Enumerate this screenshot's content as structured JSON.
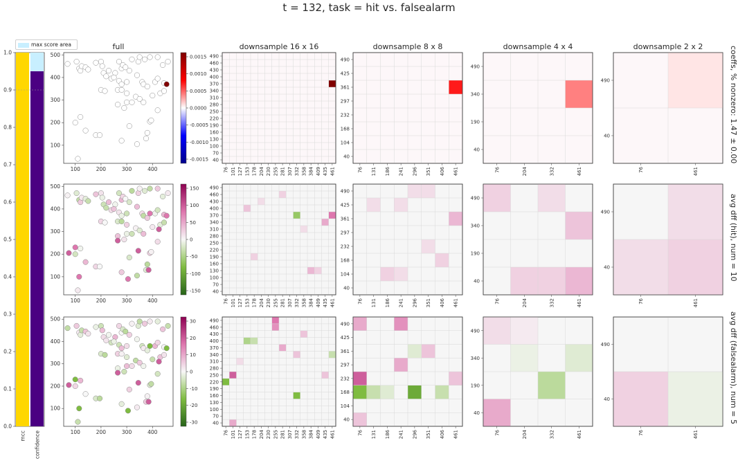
{
  "suptitle": "t = 132, task = hit vs. falsealarm",
  "legend": {
    "label": "max score area",
    "color": "#c8efff"
  },
  "column_titles": [
    "full",
    "downsample 16 x 16",
    "downsample 8 x 8",
    "downsample 4 x 4",
    "downsample 2 x 2"
  ],
  "row_labels": [
    "coeffs, % nonzero: 1.47 ± 0.00",
    "avg dff (hit),  num = 10",
    "avg dff (falsealarm),  num = 5"
  ],
  "chart_data": {
    "type": "bar",
    "categories": [
      "mcc",
      "confidence"
    ],
    "values": [
      1.0,
      0.95
    ],
    "bar_colors": [
      "#ffd700",
      "#4b0082"
    ],
    "max_score_area": [
      1.0,
      1.0
    ],
    "ylim": [
      0,
      1.0
    ],
    "yticks": [
      "0.0",
      "0.1",
      "0.2",
      "0.3",
      "0.4",
      "0.5",
      "0.6",
      "0.7",
      "0.8",
      "0.9",
      "1.0"
    ],
    "reference_line": 0.9,
    "scatter": {
      "type": "scatter",
      "xlim": [
        55,
        480
      ],
      "ylim": [
        20,
        510
      ],
      "xticks": [
        "100",
        "200",
        "300",
        "400"
      ],
      "yticks": [
        "100",
        "200",
        "300",
        "400",
        "500"
      ],
      "points": [
        [
          70,
          460
        ],
        [
          105,
          470
        ],
        [
          115,
          440
        ],
        [
          120,
          430
        ],
        [
          125,
          450
        ],
        [
          140,
          445
        ],
        [
          150,
          435
        ],
        [
          180,
          465
        ],
        [
          200,
          470
        ],
        [
          205,
          450
        ],
        [
          210,
          420
        ],
        [
          230,
          430
        ],
        [
          240,
          395
        ],
        [
          255,
          420
        ],
        [
          270,
          470
        ],
        [
          280,
          440
        ],
        [
          285,
          455
        ],
        [
          295,
          445
        ],
        [
          310,
          430
        ],
        [
          320,
          480
        ],
        [
          345,
          470
        ],
        [
          350,
          490
        ],
        [
          370,
          480
        ],
        [
          390,
          490
        ],
        [
          420,
          490
        ],
        [
          460,
          470
        ],
        [
          440,
          455
        ],
        [
          220,
          405
        ],
        [
          250,
          400
        ],
        [
          270,
          385
        ],
        [
          280,
          370
        ],
        [
          300,
          380
        ],
        [
          340,
          410
        ],
        [
          360,
          380
        ],
        [
          410,
          380
        ],
        [
          420,
          395
        ],
        [
          445,
          375
        ],
        [
          200,
          345
        ],
        [
          215,
          340
        ],
        [
          265,
          345
        ],
        [
          280,
          345
        ],
        [
          300,
          330
        ],
        [
          335,
          315
        ],
        [
          350,
          305
        ],
        [
          365,
          370
        ],
        [
          380,
          360
        ],
        [
          400,
          320
        ],
        [
          430,
          330
        ],
        [
          445,
          340
        ],
        [
          265,
          280
        ],
        [
          290,
          265
        ],
        [
          300,
          290
        ],
        [
          320,
          290
        ],
        [
          365,
          290
        ],
        [
          420,
          255
        ],
        [
          120,
          225
        ],
        [
          100,
          200
        ],
        [
          140,
          165
        ],
        [
          180,
          145
        ],
        [
          195,
          145
        ],
        [
          310,
          185
        ],
        [
          380,
          155
        ],
        [
          390,
          205
        ],
        [
          395,
          210
        ],
        [
          375,
          130
        ],
        [
          340,
          105
        ],
        [
          280,
          120
        ],
        [
          110,
          40
        ]
      ],
      "highlight_points": [
        [
          455,
          370
        ],
        [
          385,
          130
        ],
        [
          115,
          100
        ],
        [
          75,
          205
        ],
        [
          100,
          230
        ],
        [
          265,
          260
        ],
        [
          305,
          90
        ],
        [
          345,
          215
        ],
        [
          390,
          380
        ],
        [
          425,
          310
        ]
      ]
    },
    "colorbars": [
      {
        "ticks": [
          "0.0015",
          "0.0010",
          "0.0005",
          "0.0000",
          "-0.0005",
          "-0.0010",
          "-0.0015"
        ],
        "colors": [
          "#800000",
          "#ff0000",
          "#ffffff",
          "#0000ff",
          "#00008b"
        ]
      },
      {
        "ticks": [
          "150",
          "100",
          "50",
          "0",
          "-50",
          "-100",
          "-150"
        ],
        "colors": [
          "#8e0152",
          "#de77ae",
          "#f7f7f7",
          "#7fbc41",
          "#276419"
        ]
      },
      {
        "ticks": [
          "30",
          "20",
          "10",
          "0",
          "-10",
          "-20",
          "-30"
        ],
        "colors": [
          "#8e0152",
          "#de77ae",
          "#f7f7f7",
          "#7fbc41",
          "#276419"
        ]
      }
    ],
    "grids": {
      "g16": {
        "xticks": [
          "76",
          "101",
          "127",
          "153",
          "178",
          "204",
          "230",
          "255",
          "281",
          "307",
          "332",
          "358",
          "384",
          "409",
          "435",
          "461"
        ],
        "yticks": [
          "490",
          "460",
          "430",
          "400",
          "370",
          "340",
          "310",
          "280",
          "250",
          "220",
          "190",
          "160",
          "130",
          "100",
          "70",
          "40"
        ]
      },
      "g8": {
        "xticks": [
          "76",
          "131",
          "186",
          "241",
          "296",
          "351",
          "406",
          "461"
        ],
        "yticks": [
          "490",
          "425",
          "361",
          "297",
          "232",
          "168",
          "104",
          "40"
        ]
      },
      "g4": {
        "xticks": [
          "76",
          "204",
          "332",
          "461"
        ],
        "yticks": [
          "490",
          "340",
          "190",
          "40"
        ]
      },
      "g2": {
        "xticks": [
          "76",
          "461"
        ],
        "yticks": [
          "490",
          "40"
        ]
      }
    },
    "heatmaps": [
      {
        "row": 0,
        "res": 16,
        "cells": [
          [
            15,
            4,
            1.0
          ]
        ]
      },
      {
        "row": 0,
        "res": 8,
        "cells": [
          [
            7,
            2,
            0.45
          ]
        ]
      },
      {
        "row": 0,
        "res": 4,
        "cells": [
          [
            3,
            1,
            0.25
          ]
        ]
      },
      {
        "row": 0,
        "res": 2,
        "cells": [
          [
            1,
            0,
            0.05
          ]
        ]
      },
      {
        "row": 1,
        "res": 16,
        "cells": [
          [
            15,
            4,
            0.5
          ],
          [
            14,
            5,
            0.3
          ],
          [
            10,
            4,
            -0.4
          ],
          [
            5,
            2,
            0.1
          ],
          [
            4,
            10,
            0.15
          ],
          [
            12,
            12,
            0.25
          ],
          [
            13,
            12,
            0.15
          ],
          [
            3,
            3,
            0.2
          ],
          [
            8,
            1,
            0.15
          ],
          [
            11,
            6,
            0.1
          ]
        ]
      },
      {
        "row": 1,
        "res": 8,
        "cells": [
          [
            7,
            2,
            0.25
          ],
          [
            6,
            5,
            0.15
          ],
          [
            3,
            1,
            0.1
          ],
          [
            5,
            4,
            0.1
          ],
          [
            2,
            6,
            0.15
          ],
          [
            1,
            1,
            0.1
          ],
          [
            4,
            0,
            0.1
          ],
          [
            5,
            0,
            0.1
          ],
          [
            3,
            6,
            0.1
          ]
        ]
      },
      {
        "row": 1,
        "res": 4,
        "cells": [
          [
            3,
            1,
            0.2
          ],
          [
            3,
            3,
            0.25
          ],
          [
            2,
            3,
            0.15
          ],
          [
            1,
            3,
            0.15
          ],
          [
            0,
            0,
            0.15
          ],
          [
            2,
            0,
            0.1
          ]
        ]
      },
      {
        "row": 1,
        "res": 2,
        "cells": [
          [
            1,
            1,
            0.15
          ],
          [
            0,
            1,
            0.1
          ],
          [
            1,
            0,
            0.1
          ]
        ]
      },
      {
        "row": 2,
        "res": 16,
        "cells": [
          [
            0,
            9,
            -0.5
          ],
          [
            1,
            8,
            0.6
          ],
          [
            7,
            0,
            0.5
          ],
          [
            7,
            1,
            0.4
          ],
          [
            10,
            11,
            -0.5
          ],
          [
            8,
            4,
            0.3
          ],
          [
            3,
            3,
            -0.3
          ],
          [
            4,
            3,
            -0.2
          ],
          [
            10,
            5,
            0.2
          ],
          [
            14,
            8,
            0.2
          ],
          [
            1,
            15,
            0.3
          ],
          [
            15,
            5,
            -0.2
          ],
          [
            2,
            6,
            0.1
          ],
          [
            11,
            2,
            0.2
          ]
        ]
      },
      {
        "row": 2,
        "res": 8,
        "cells": [
          [
            0,
            4,
            0.6
          ],
          [
            0,
            5,
            -0.5
          ],
          [
            1,
            5,
            -0.2
          ],
          [
            4,
            5,
            -0.6
          ],
          [
            3,
            0,
            0.4
          ],
          [
            3,
            3,
            0.3
          ],
          [
            5,
            2,
            0.2
          ],
          [
            7,
            4,
            0.2
          ],
          [
            0,
            0,
            0.3
          ],
          [
            0,
            7,
            0.2
          ],
          [
            6,
            5,
            -0.2
          ],
          [
            2,
            5,
            -0.1
          ],
          [
            4,
            2,
            -0.1
          ]
        ]
      },
      {
        "row": 2,
        "res": 4,
        "cells": [
          [
            0,
            3,
            0.3
          ],
          [
            2,
            2,
            -0.25
          ],
          [
            3,
            1,
            -0.1
          ],
          [
            1,
            0,
            0.05
          ],
          [
            0,
            0,
            0.1
          ],
          [
            1,
            1,
            -0.05
          ]
        ]
      },
      {
        "row": 2,
        "res": 2,
        "cells": [
          [
            0,
            1,
            0.15
          ],
          [
            1,
            1,
            -0.05
          ]
        ]
      }
    ]
  }
}
